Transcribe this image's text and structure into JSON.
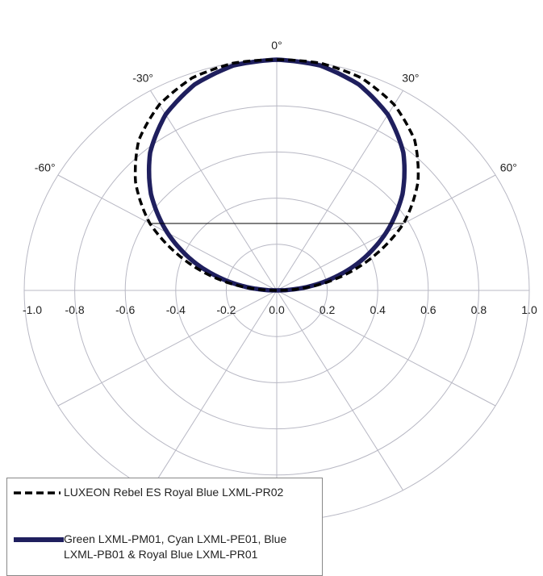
{
  "chart_data": {
    "type": "polar-line",
    "title": "",
    "radial_ticks": [
      "-1.0",
      "-0.8",
      "-0.6",
      "-0.4",
      "-0.2",
      "0.0",
      "0.2",
      "0.4",
      "0.6",
      "0.8",
      "1.0"
    ],
    "radial_range": [
      0,
      1
    ],
    "angle_labels": [
      {
        "angle": -60,
        "label": "-60°"
      },
      {
        "angle": -30,
        "label": "-30°"
      },
      {
        "angle": 0,
        "label": "0°"
      },
      {
        "angle": 30,
        "label": "30°"
      },
      {
        "angle": 60,
        "label": "60°"
      }
    ],
    "spoke_angles": [
      -150,
      -120,
      -90,
      -60,
      -30,
      0,
      30,
      60,
      90,
      120,
      150,
      180
    ],
    "grid": true,
    "legend_position": "bottom-left",
    "series": [
      {
        "name": "LUXEON Rebel ES Royal Blue LXML-PR02",
        "style": "dashed",
        "color": "#000000",
        "angles": [
          -90,
          -80,
          -70,
          -60,
          -50,
          -40,
          -30,
          -20,
          -10,
          0,
          10,
          20,
          30,
          40,
          50,
          60,
          70,
          80,
          90
        ],
        "values": [
          0.0,
          0.2,
          0.39,
          0.58,
          0.73,
          0.85,
          0.93,
          0.98,
          1.0,
          1.0,
          1.0,
          0.98,
          0.93,
          0.85,
          0.73,
          0.58,
          0.39,
          0.2,
          0.0
        ]
      },
      {
        "name": "Green LXML-PM01, Cyan LXML-PE01, Blue LXML-PB01 & Royal Blue LXML-PR01",
        "style": "solid",
        "color": "#1f1f5e",
        "angles": [
          -90,
          -80,
          -70,
          -60,
          -50,
          -40,
          -30,
          -20,
          -10,
          0,
          10,
          20,
          30,
          40,
          50,
          60,
          70,
          80,
          90
        ],
        "values": [
          0.0,
          0.17,
          0.34,
          0.5,
          0.65,
          0.78,
          0.88,
          0.95,
          0.99,
          1.0,
          0.99,
          0.95,
          0.88,
          0.78,
          0.65,
          0.5,
          0.34,
          0.17,
          0.0
        ]
      }
    ]
  }
}
